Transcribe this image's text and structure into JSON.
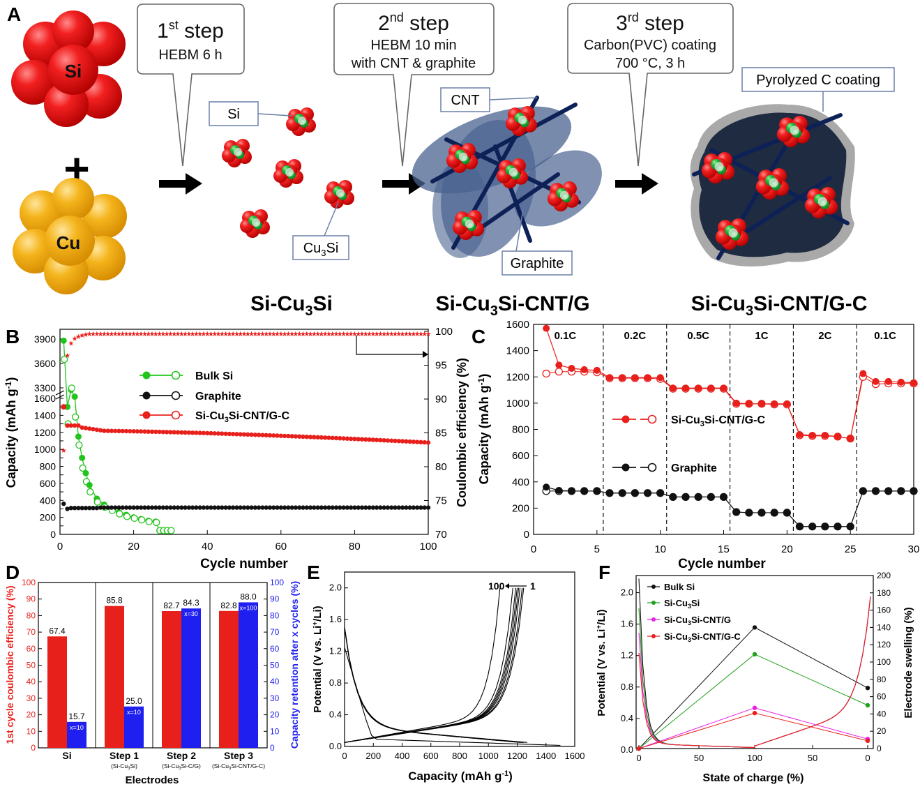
{
  "panel_letters": {
    "a": "A",
    "b": "B",
    "c": "C",
    "d": "D",
    "e": "E",
    "f": "F"
  },
  "scheme": {
    "si": "Si",
    "cu": "Cu",
    "plus": "+",
    "step1": {
      "title": "1",
      "sup": "st",
      "tail": " step",
      "line1": "HEBM 6 h"
    },
    "step2": {
      "title": "2",
      "sup": "nd",
      "tail": " step",
      "line1": "HEBM 10 min",
      "line2": "with CNT & graphite"
    },
    "step3": {
      "title": "3",
      "sup": "rd",
      "tail": " step",
      "line1": "Carbon(PVC) coating",
      "line2": "700 °C, 3 h"
    },
    "callouts": {
      "si": "Si",
      "cu3si": "Cu",
      "cu3si_sub": "3",
      "cu3si_tail": "Si",
      "cnt": "CNT",
      "graphite": "Graphite",
      "pyrolyzed": "Pyrolyzed C coating"
    },
    "product1": {
      "a": "Si-Cu",
      "sub": "3",
      "b": "Si"
    },
    "product2": {
      "a": "Si-Cu",
      "sub": "3",
      "b": "Si-CNT/G"
    },
    "product3": {
      "a": "Si-Cu",
      "sub": "3",
      "b": "Si-CNT/G-C"
    }
  },
  "colors": {
    "red": "#e8201c",
    "green": "#22c41c",
    "black": "#111111",
    "blue": "#1f1ff0",
    "navy": "#0e2157",
    "graphite": "#4a6390",
    "gold": "#f2b31c"
  },
  "chart_data": [
    {
      "panel": "B",
      "type": "scatter",
      "xlabel": "Cycle number",
      "ylabel": "Capacity (mAh g⁻¹)",
      "y2label": "Coulombic efficiency (%)",
      "xlim": [
        0,
        100
      ],
      "xticks": [
        0,
        20,
        40,
        60,
        80,
        100
      ],
      "yticks_lower": [
        0,
        100,
        200,
        300,
        400,
        500,
        600,
        700,
        800,
        900,
        1000,
        1100,
        1200,
        1300,
        1400,
        1500,
        1600
      ],
      "ytick_labels_lower": [
        "0",
        "200",
        "400",
        "600",
        "800",
        "1000",
        "1200",
        "1400",
        "1600"
      ],
      "yticks_upper": [
        3300,
        3600,
        3900
      ],
      "y2ticks": [
        70,
        75,
        80,
        85,
        90,
        95,
        100
      ],
      "legend": [
        "Bulk Si",
        "Graphite",
        "Si-Cu₃Si-CNT/G-C"
      ],
      "series": [
        {
          "name": "Bulk Si",
          "color": "#22c41c",
          "x": [
            1,
            2,
            3,
            4,
            5,
            6,
            7,
            8,
            10,
            12,
            14,
            16,
            18,
            20,
            22,
            24,
            26,
            27,
            28,
            29,
            30
          ],
          "discharge": [
            3880,
            1500,
            1700,
            1620,
            1150,
            900,
            720,
            580,
            420,
            350,
            300,
            260,
            230,
            200,
            180,
            160,
            150,
            45,
            45,
            45,
            45
          ],
          "charge": [
            3650,
            1300,
            1720,
            1380,
            1050,
            780,
            620,
            500,
            380,
            320,
            280,
            240,
            210,
            190,
            170,
            150,
            140,
            45,
            45,
            45,
            45
          ]
        },
        {
          "name": "Graphite",
          "color": "#111111",
          "start": [
            360,
            300
          ],
          "plateau": 310
        },
        {
          "name": "Si-Cu₃Si-CNT/G-C",
          "color": "#e8201c",
          "first": 1500,
          "start": 1280,
          "end": 1080,
          "ce": [
            82.5,
            96.5,
            98.3,
            99.0,
            99.3,
            99.5,
            99.6,
            99.7,
            99.7
          ]
        }
      ]
    },
    {
      "panel": "C",
      "type": "scatter",
      "xlabel": "Cycle number",
      "ylabel": "Capacity (mAh g⁻¹)",
      "xlim": [
        0,
        30
      ],
      "ylim": [
        0,
        1600
      ],
      "xticks": [
        0,
        5,
        10,
        15,
        20,
        25,
        30
      ],
      "yticks": [
        0,
        200,
        400,
        600,
        800,
        1000,
        1200,
        1400,
        1600
      ],
      "rate_labels": [
        "0.1C",
        "0.2C",
        "0.5C",
        "1C",
        "2C",
        "0.1C"
      ],
      "rate_dividers": [
        5.5,
        10.5,
        15.5,
        20.5,
        25.5
      ],
      "legend": [
        "Si-Cu₃Si-CNT/G-C",
        "Graphite"
      ],
      "series": [
        {
          "name": "Si-Cu₃Si-CNT/G-C",
          "color": "#e8201c",
          "x": [
            1,
            2,
            3,
            4,
            5,
            6,
            7,
            8,
            9,
            10,
            11,
            12,
            13,
            14,
            15,
            16,
            17,
            18,
            19,
            20,
            21,
            22,
            23,
            24,
            25,
            26,
            27,
            28,
            29,
            30
          ],
          "discharge": [
            1570,
            1290,
            1265,
            1255,
            1250,
            1195,
            1195,
            1195,
            1195,
            1195,
            1115,
            1115,
            1115,
            1115,
            1115,
            1000,
            995,
            995,
            995,
            995,
            760,
            755,
            755,
            745,
            730,
            1225,
            1165,
            1165,
            1160,
            1155
          ],
          "charge": [
            1225,
            1240,
            1240,
            1240,
            1235,
            1190,
            1190,
            1190,
            1190,
            1185,
            1110,
            1110,
            1110,
            1110,
            1110,
            995,
            995,
            995,
            990,
            990,
            755,
            750,
            750,
            745,
            730,
            1200,
            1145,
            1150,
            1150,
            1150
          ]
        },
        {
          "name": "Graphite",
          "color": "#111111",
          "x": [
            1,
            2,
            3,
            4,
            5,
            6,
            7,
            8,
            9,
            10,
            11,
            12,
            13,
            14,
            15,
            16,
            17,
            18,
            19,
            20,
            21,
            22,
            23,
            24,
            25,
            26,
            27,
            28,
            29,
            30
          ],
          "discharge": [
            360,
            335,
            330,
            330,
            330,
            315,
            315,
            315,
            315,
            315,
            285,
            285,
            285,
            285,
            285,
            170,
            165,
            165,
            165,
            165,
            60,
            60,
            60,
            60,
            60,
            330,
            330,
            330,
            330,
            330
          ],
          "charge": [
            330,
            330,
            330,
            330,
            330,
            315,
            315,
            315,
            315,
            315,
            285,
            285,
            285,
            285,
            285,
            170,
            165,
            165,
            165,
            165,
            60,
            60,
            60,
            60,
            60,
            330,
            330,
            330,
            330,
            330
          ]
        }
      ]
    },
    {
      "panel": "D",
      "type": "bar",
      "xlabel": "Electrodes",
      "ylabel": "1st cycle coulombic efficiency (%)",
      "y2label": "Capacity retention after x cycles (%)",
      "ylim": [
        0,
        100
      ],
      "yticks": [
        0,
        10,
        20,
        30,
        40,
        50,
        60,
        70,
        80,
        90,
        100
      ],
      "categories": [
        "Si",
        "Step 1",
        "Step 2",
        "Step 3"
      ],
      "sublabels": [
        "",
        "(Si-Cu₃Si)",
        "(Si-Cu₃Si-C/G)",
        "(Si-Cu₃Si-CNT/G-C)"
      ],
      "series": [
        {
          "name": "1st cycle coulombic efficiency",
          "color": "#e8201c",
          "values": [
            67.4,
            85.8,
            82.7,
            82.8
          ],
          "labels": [
            "67.4",
            "85.8",
            "82.7",
            "82.8"
          ]
        },
        {
          "name": "Capacity retention",
          "color": "#1f1ff0",
          "values": [
            15.7,
            25.0,
            84.3,
            88.0
          ],
          "labels": [
            "15.7",
            "25.0",
            "84.3",
            "88.0"
          ],
          "x_labels": [
            "x=10",
            "x=10",
            "x=30",
            "x=100"
          ]
        }
      ]
    },
    {
      "panel": "E",
      "type": "line",
      "xlabel": "Capacity (mAh g⁻¹)",
      "ylabel": "Potential (V vs. Li⁺/Li)",
      "xlim": [
        0,
        1600
      ],
      "ylim": [
        0,
        2.2
      ],
      "xticks": [
        0,
        200,
        400,
        600,
        800,
        1000,
        1200,
        1400,
        1600
      ],
      "yticks": [
        0,
        0.4,
        0.8,
        1.2,
        1.6,
        2.0
      ],
      "annotation": {
        "from": "100",
        "to": "1"
      },
      "discharge_ends": [
        1500,
        1270,
        1250,
        1240,
        1230,
        1220
      ],
      "charge_ends": [
        1080,
        1170,
        1190,
        1200,
        1210,
        1220,
        1235,
        1245
      ]
    },
    {
      "panel": "F",
      "type": "line",
      "xlabel": "State of charge (%)",
      "ylabel": "Potential (V vs. Li⁺/Li)",
      "y2label": "Electrode swelling (%)",
      "xticks": [
        0,
        50,
        100,
        50,
        0
      ],
      "yticks": [
        0.0,
        0.4,
        0.8,
        1.2,
        1.6,
        2.0
      ],
      "y2ticks": [
        0,
        20,
        40,
        60,
        80,
        100,
        120,
        140,
        160,
        180,
        200
      ],
      "legend": [
        "Bulk Si",
        "Si-Cu₃Si",
        "Si-Cu₃Si-CNT/G",
        "Si-Cu₃Si-CNT/G-C"
      ],
      "series": [
        {
          "name": "Bulk Si",
          "color": "#111111",
          "swelling": [
            0,
            140,
            70
          ]
        },
        {
          "name": "Si-Cu₃Si",
          "color": "#22a01c",
          "swelling": [
            0,
            109,
            50
          ]
        },
        {
          "name": "Si-Cu₃Si-CNT/G",
          "color": "#e820e8",
          "swelling": [
            0,
            47,
            11
          ]
        },
        {
          "name": "Si-Cu₃Si-CNT/G-C",
          "color": "#e8201c",
          "swelling": [
            0,
            41,
            9
          ]
        }
      ]
    }
  ],
  "panelB_text": {
    "xlabel": "Cycle number",
    "ylabel": "Capacity (mAh g",
    "ylabel_sup": "-1",
    "ylabel_tail": ")",
    "y2label": "Coulombic efficiency (%)",
    "legend": [
      "Bulk Si",
      "Graphite",
      "Si-Cu",
      "3",
      "Si-CNT/G-C"
    ]
  },
  "panelC_text": {
    "xlabel": "Cycle number",
    "ylabel": "Capacity (mAh g",
    "ylabel_sup": "-1",
    "ylabel_tail": ")",
    "legend_a": "Si-Cu",
    "legend_a_sub": "3",
    "legend_a_tail": "Si-CNT/G-C",
    "legend_b": "Graphite"
  },
  "panelD_text": {
    "xlabel": "Electrodes",
    "ylabel": "1st cycle coulombic efficiency (%)",
    "y2label": "Capacity retention after x cycles (%)",
    "cats": [
      "Si",
      "Step 1",
      "Step 2",
      "Step 3"
    ],
    "subs": [
      "(Si-Cu",
      "3",
      "Si)",
      "(Si-Cu",
      "3",
      "Si-C/G)",
      "(Si-Cu",
      "3",
      "Si-CNT/G-C)"
    ]
  },
  "panelE_text": {
    "xlabel": "Capacity (mAh g",
    "xlabel_sup": "-1",
    "xlabel_tail": ")",
    "ylabel": "Potential (V vs. Li",
    "ylabel_sup": "+",
    "ylabel_tail": "/Li)"
  },
  "panelF_text": {
    "xlabel": "State of charge (%)",
    "ylabel": "Potential (V vs. Li",
    "ylabel_sup": "+",
    "ylabel_tail": "/Li)",
    "y2label": "Electrode swelling (%)",
    "legend": [
      "Bulk Si",
      "Si-Cu",
      "3",
      "Si",
      "Si-Cu",
      "3",
      "Si-CNT/G",
      "Si-Cu",
      "3",
      "Si-CNT/G-C"
    ]
  }
}
